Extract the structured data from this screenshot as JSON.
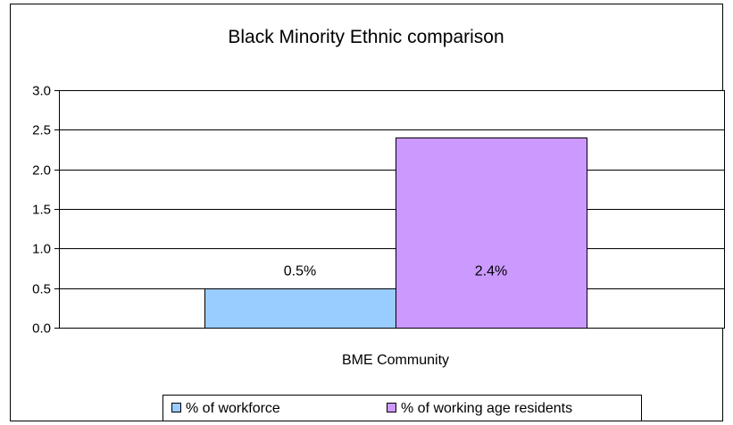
{
  "chart_data": {
    "type": "bar",
    "title": "Black Minority Ethnic comparison",
    "categories": [
      "BME Community"
    ],
    "series": [
      {
        "name": "% of workforce",
        "values": [
          0.5
        ],
        "data_label": "0.5%",
        "color": "#99ccff"
      },
      {
        "name": "% of working age residents",
        "values": [
          2.4
        ],
        "data_label": "2.4%",
        "color": "#cc99ff"
      }
    ],
    "ylim": [
      0,
      3.0
    ],
    "yticks": [
      0.0,
      0.5,
      1.0,
      1.5,
      2.0,
      2.5,
      3.0
    ],
    "ytick_labels": [
      "0.0",
      "0.5",
      "1.0",
      "1.5",
      "2.0",
      "2.5",
      "3.0"
    ],
    "xlabel": "",
    "ylabel": "",
    "grid": true,
    "legend": "bottom"
  }
}
